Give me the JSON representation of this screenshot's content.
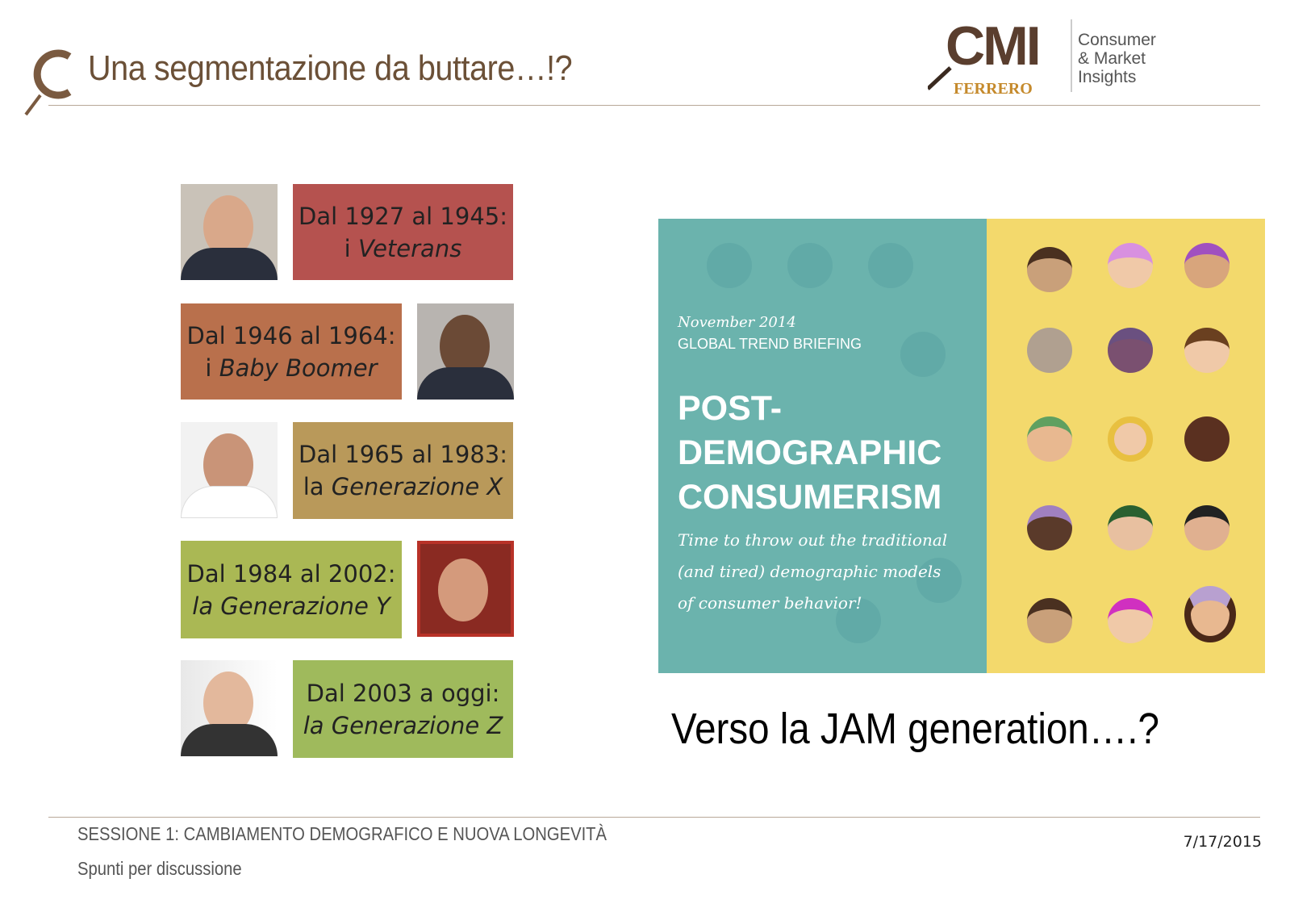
{
  "slide": {
    "title": "Una segmentazione da buttare…!?"
  },
  "logo": {
    "brand": "CMI",
    "company": "FERRERO",
    "tagline": [
      "Consumer",
      "& Market",
      "Insights"
    ]
  },
  "generations": [
    {
      "line1": "Dal 1927 al 1945:",
      "prefix": "i ",
      "name": "Veterans",
      "color": "#b5524f"
    },
    {
      "line1": "Dal 1946 al 1964:",
      "prefix": "i ",
      "name": "Baby Boomer",
      "color": "#b9704c"
    },
    {
      "line1": "Dal 1965 al 1983:",
      "prefix": "la ",
      "name": "Generazione X",
      "color": "#b9995a"
    },
    {
      "line1": "Dal 1984 al 2002:",
      "prefix": "",
      "name": "la Generazione Y",
      "color": "#aab854"
    },
    {
      "line1": "Dal 2003 a oggi:",
      "prefix": "",
      "name": "la Generazione Z",
      "color": "#9fba5c"
    }
  ],
  "poster": {
    "date": "November 2014",
    "kicker": "GLOBAL TREND BRIEFING",
    "headline": [
      "POST-",
      "DEMOGRAPHIC",
      "CONSUMERISM"
    ],
    "subtitle": [
      "Time to throw out the traditional",
      "(and tired) demographic models",
      "of consumer behavior!"
    ],
    "colors": {
      "teal": "#6bb3ad",
      "yellow": "#f3d96c"
    }
  },
  "caption": "Verso la JAM generation….?",
  "footer": {
    "session": "SESSIONE 1: CAMBIAMENTO DEMOGRAFICO E NUOVA LONGEVITÀ",
    "subtitle": "Spunti per discussione",
    "date": "7/17/2015"
  }
}
